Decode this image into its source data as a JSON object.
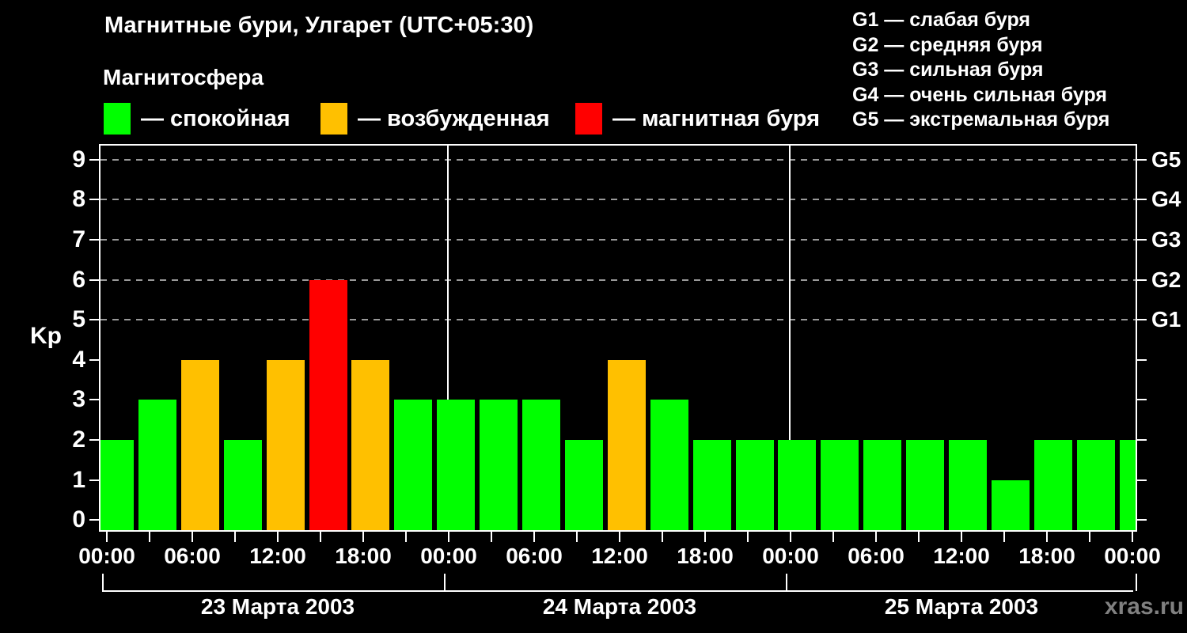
{
  "title": "Магнитные бури, Улгарет (UTC+05:30)",
  "subtitle": "Магнитосфера",
  "legend": [
    {
      "label": "— спокойная",
      "color_key": "green"
    },
    {
      "label": "— возбужденная",
      "color_key": "orange"
    },
    {
      "label": "— магнитная буря",
      "color_key": "red"
    }
  ],
  "storm_scale_legend": [
    "G1 — слабая буря",
    "G2 — средняя буря",
    "G3 — сильная буря",
    "G4 — очень сильная буря",
    "G5 — экстремальная буря"
  ],
  "watermark": "xras.ru",
  "colors": {
    "green": "#00ff00",
    "orange": "#ffc000",
    "red": "#ff0000",
    "background": "#000000",
    "text": "#ffffff",
    "gridline": "#999999",
    "watermark": "#808080"
  },
  "chart_data": {
    "type": "bar",
    "ylabel": "Kp",
    "ylim": [
      0,
      9
    ],
    "interval_hours": 3,
    "grid": "dashed horizontal at Kp 5-9 only",
    "legend_position": "top",
    "yticks": [
      "0",
      "1",
      "2",
      "3",
      "4",
      "5",
      "6",
      "7",
      "8",
      "9"
    ],
    "xtick_labels": [
      "00:00",
      "06:00",
      "12:00",
      "18:00",
      "00:00",
      "06:00",
      "12:00",
      "18:00",
      "00:00",
      "06:00",
      "12:00",
      "18:00",
      "00:00"
    ],
    "right_axis_labels": [
      {
        "label": "G1",
        "kp": 5
      },
      {
        "label": "G2",
        "kp": 6
      },
      {
        "label": "G3",
        "kp": 7
      },
      {
        "label": "G4",
        "kp": 8
      },
      {
        "label": "G5",
        "kp": 9
      }
    ],
    "days": [
      {
        "date": "23 Марта 2003",
        "values": [
          2,
          3,
          4,
          2,
          4,
          6,
          4,
          3
        ],
        "colors": [
          "green",
          "green",
          "orange",
          "green",
          "orange",
          "red",
          "orange",
          "green"
        ]
      },
      {
        "date": "24 Марта 2003",
        "values": [
          3,
          3,
          3,
          2,
          4,
          3,
          2,
          2
        ],
        "colors": [
          "green",
          "green",
          "green",
          "green",
          "orange",
          "green",
          "green",
          "green"
        ]
      },
      {
        "date": "25 Марта 2003",
        "values": [
          2,
          2,
          2,
          2,
          2,
          1,
          2,
          2
        ],
        "colors": [
          "green",
          "green",
          "green",
          "green",
          "green",
          "green",
          "green",
          "green"
        ]
      }
    ],
    "next_day_partial_bar": {
      "value": 2,
      "color": "green"
    }
  }
}
